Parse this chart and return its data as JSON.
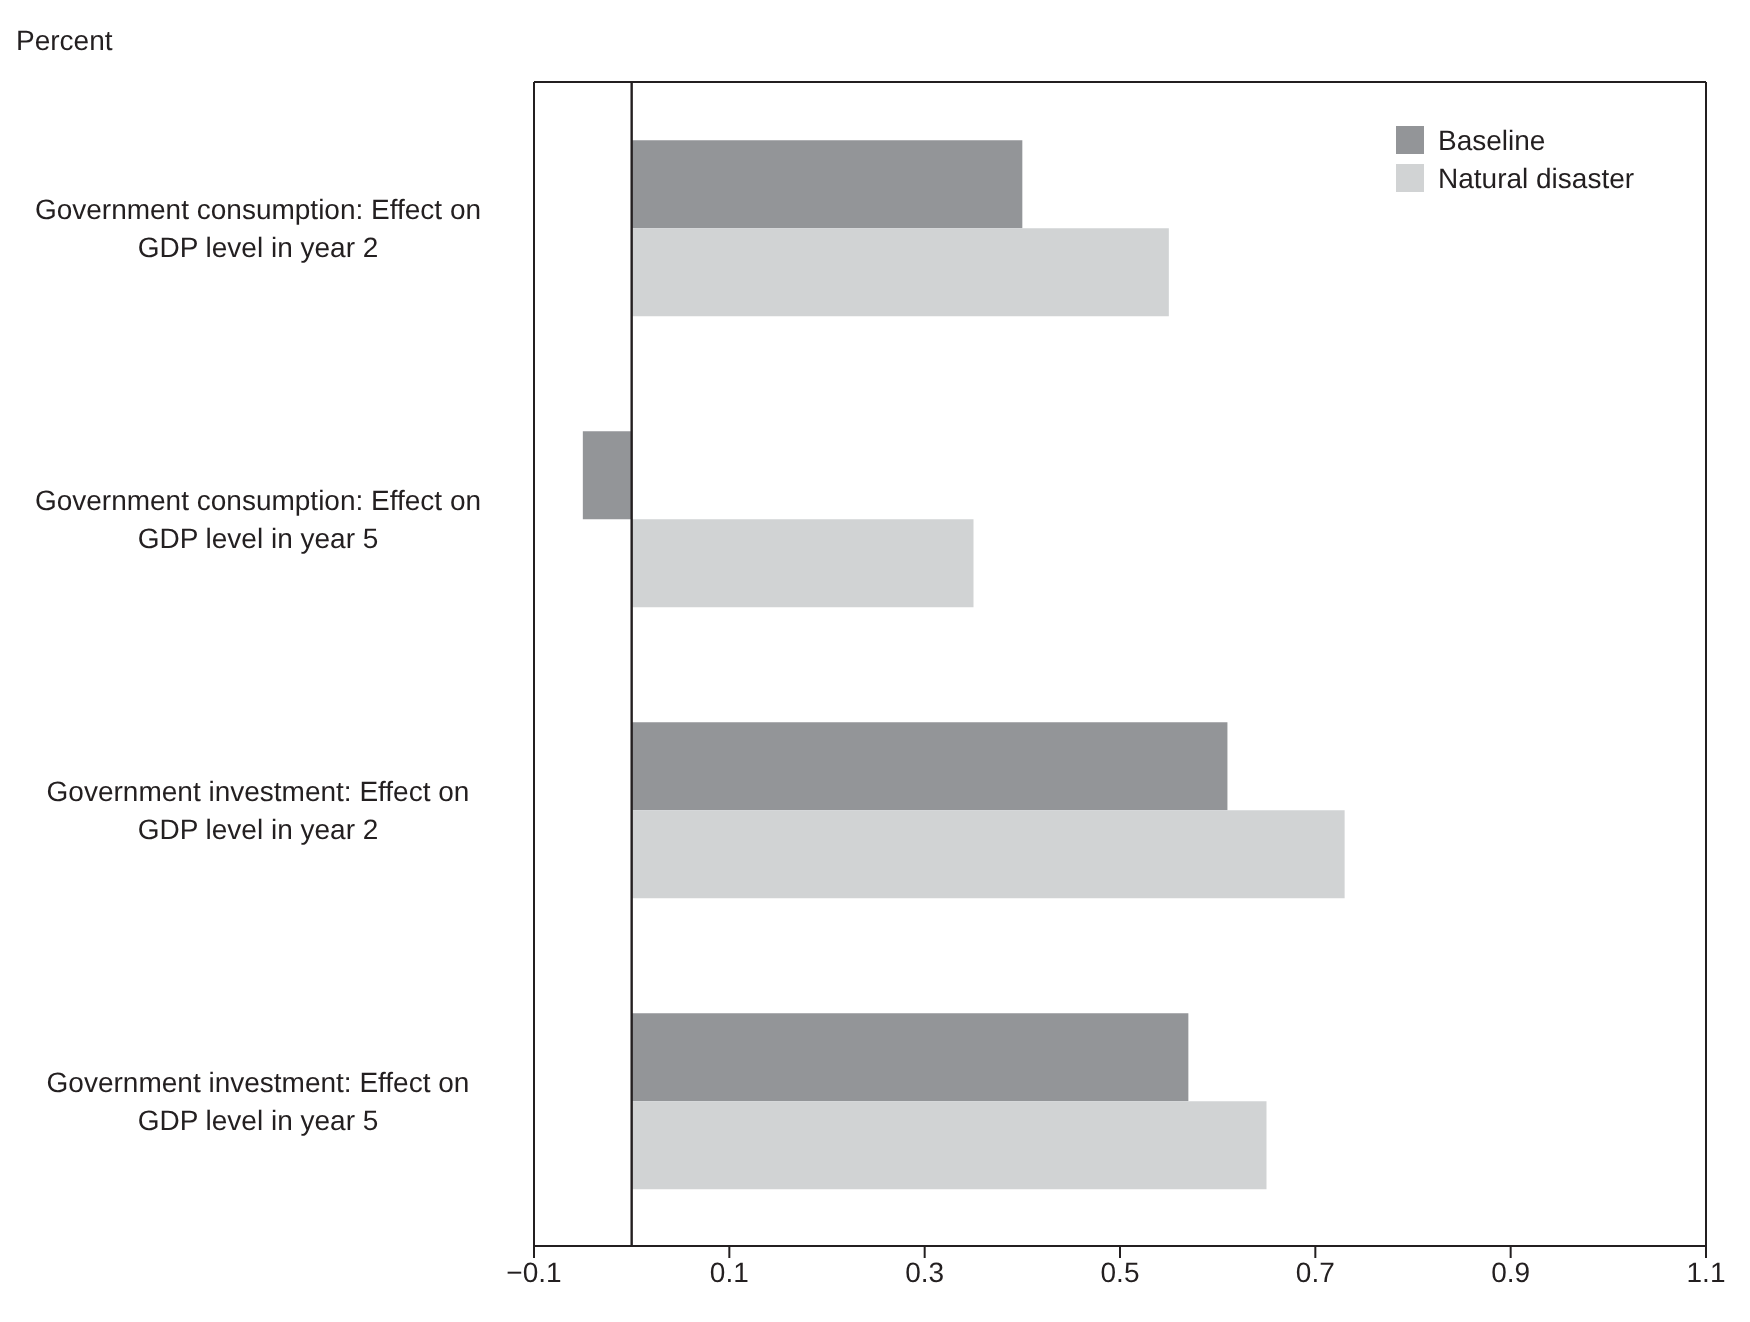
{
  "chart_data": {
    "type": "bar",
    "orientation": "horizontal",
    "xlabel": "Percent",
    "categories": [
      "Government consumption: Effect on GDP level in year 2",
      "Government consumption: Effect on GDP level in year 5",
      "Government investment: Effect on GDP level in year 2",
      "Government investment: Effect on GDP level in year 5"
    ],
    "series": [
      {
        "name": "Baseline",
        "color": "#939598",
        "values": [
          0.4,
          -0.05,
          0.61,
          0.57
        ]
      },
      {
        "name": "Natural disaster",
        "color": "#d1d3d4",
        "values": [
          0.55,
          0.35,
          0.73,
          0.65
        ]
      }
    ],
    "xlim": [
      -0.1,
      1.1
    ],
    "xticks": [
      -0.1,
      0.1,
      0.3,
      0.5,
      0.7,
      0.9,
      1.1
    ],
    "ref_lines": [
      {
        "axis": "x",
        "value": 0,
        "color": "#231f20"
      }
    ],
    "legend": "top right"
  }
}
